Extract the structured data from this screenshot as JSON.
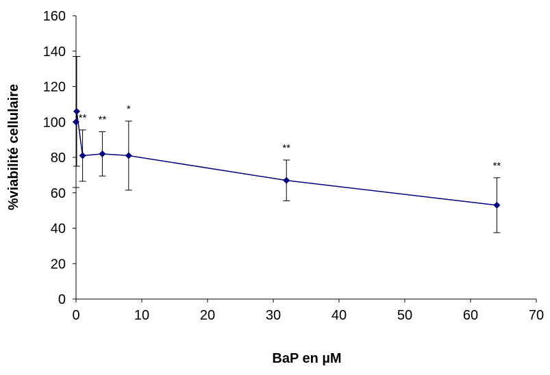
{
  "chart_data": {
    "type": "line",
    "title": "",
    "xlabel": "BaP en µM",
    "ylabel": "%viabilité cellulaire",
    "xlim": [
      0,
      70
    ],
    "ylim": [
      0,
      160
    ],
    "x_ticks": [
      0,
      10,
      20,
      30,
      40,
      50,
      60,
      70
    ],
    "y_ticks": [
      0,
      20,
      40,
      60,
      80,
      100,
      120,
      140,
      160
    ],
    "grid": false,
    "legend": "none",
    "series": [
      {
        "color": "#000080",
        "marker": "diamond",
        "points": [
          {
            "x": 0,
            "y": 100,
            "err": 37,
            "label": ""
          },
          {
            "x": 0.1,
            "y": 106,
            "err": 31,
            "label": ""
          },
          {
            "x": 1,
            "y": 81,
            "err": 14.5,
            "label": "**"
          },
          {
            "x": 4,
            "y": 82,
            "err": 12.5,
            "label": "**"
          },
          {
            "x": 8,
            "y": 81,
            "err": 19.5,
            "label": "*"
          },
          {
            "x": 32,
            "y": 67,
            "err": 11.5,
            "label": "**"
          },
          {
            "x": 64,
            "y": 53,
            "err": 15.5,
            "label": "**"
          }
        ]
      }
    ]
  }
}
